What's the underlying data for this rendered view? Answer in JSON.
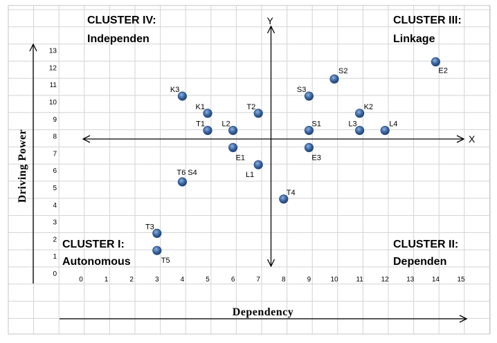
{
  "chart_data": {
    "type": "scatter",
    "title": "",
    "xlabel": "Dependency",
    "ylabel": "Driving Power",
    "xlim": [
      0,
      15
    ],
    "ylim": [
      0,
      13
    ],
    "x_ticks": [
      "0",
      "1",
      "2",
      "3",
      "4",
      "5",
      "6",
      "7",
      "8",
      "9",
      "10",
      "11",
      "12",
      "13",
      "14",
      "15"
    ],
    "y_ticks": [
      "0",
      "1",
      "2",
      "3",
      "4",
      "5",
      "6",
      "7",
      "8",
      "9",
      "10",
      "11",
      "12",
      "13"
    ],
    "quadrant_axes": {
      "x_label": "X",
      "y_label": "Y",
      "x_center": 7.5,
      "y_center": 7.5
    },
    "grid": true,
    "point_color": "#3e6aa6",
    "points": [
      {
        "label": "E2",
        "x": 14,
        "y": 12
      },
      {
        "label": "S2",
        "x": 10,
        "y": 11
      },
      {
        "label": "S3",
        "x": 9,
        "y": 10
      },
      {
        "label": "K3",
        "x": 4,
        "y": 10
      },
      {
        "label": "K1",
        "x": 5,
        "y": 9
      },
      {
        "label": "T2",
        "x": 7,
        "y": 9
      },
      {
        "label": "K2",
        "x": 11,
        "y": 9
      },
      {
        "label": "T1",
        "x": 5,
        "y": 8
      },
      {
        "label": "L2",
        "x": 6,
        "y": 8
      },
      {
        "label": "S1",
        "x": 9,
        "y": 8
      },
      {
        "label": "L3",
        "x": 11,
        "y": 8
      },
      {
        "label": "L4",
        "x": 12,
        "y": 8
      },
      {
        "label": "E1",
        "x": 6,
        "y": 7
      },
      {
        "label": "E3",
        "x": 9,
        "y": 7
      },
      {
        "label": "L1",
        "x": 7,
        "y": 6
      },
      {
        "label": "T6 S4",
        "x": 4,
        "y": 5
      },
      {
        "label": "T4",
        "x": 8,
        "y": 4
      },
      {
        "label": "T3",
        "x": 3,
        "y": 2
      },
      {
        "label": "T5",
        "x": 3,
        "y": 1
      }
    ],
    "clusters": [
      {
        "id": "IV",
        "line1": "CLUSTER IV:",
        "line2": "Independen"
      },
      {
        "id": "III",
        "line1": "CLUSTER III:",
        "line2": "Linkage"
      },
      {
        "id": "I",
        "line1": "CLUSTER I:",
        "line2": "Autonomous"
      },
      {
        "id": "II",
        "line1": "CLUSTER II:",
        "line2": "Dependen"
      }
    ]
  }
}
